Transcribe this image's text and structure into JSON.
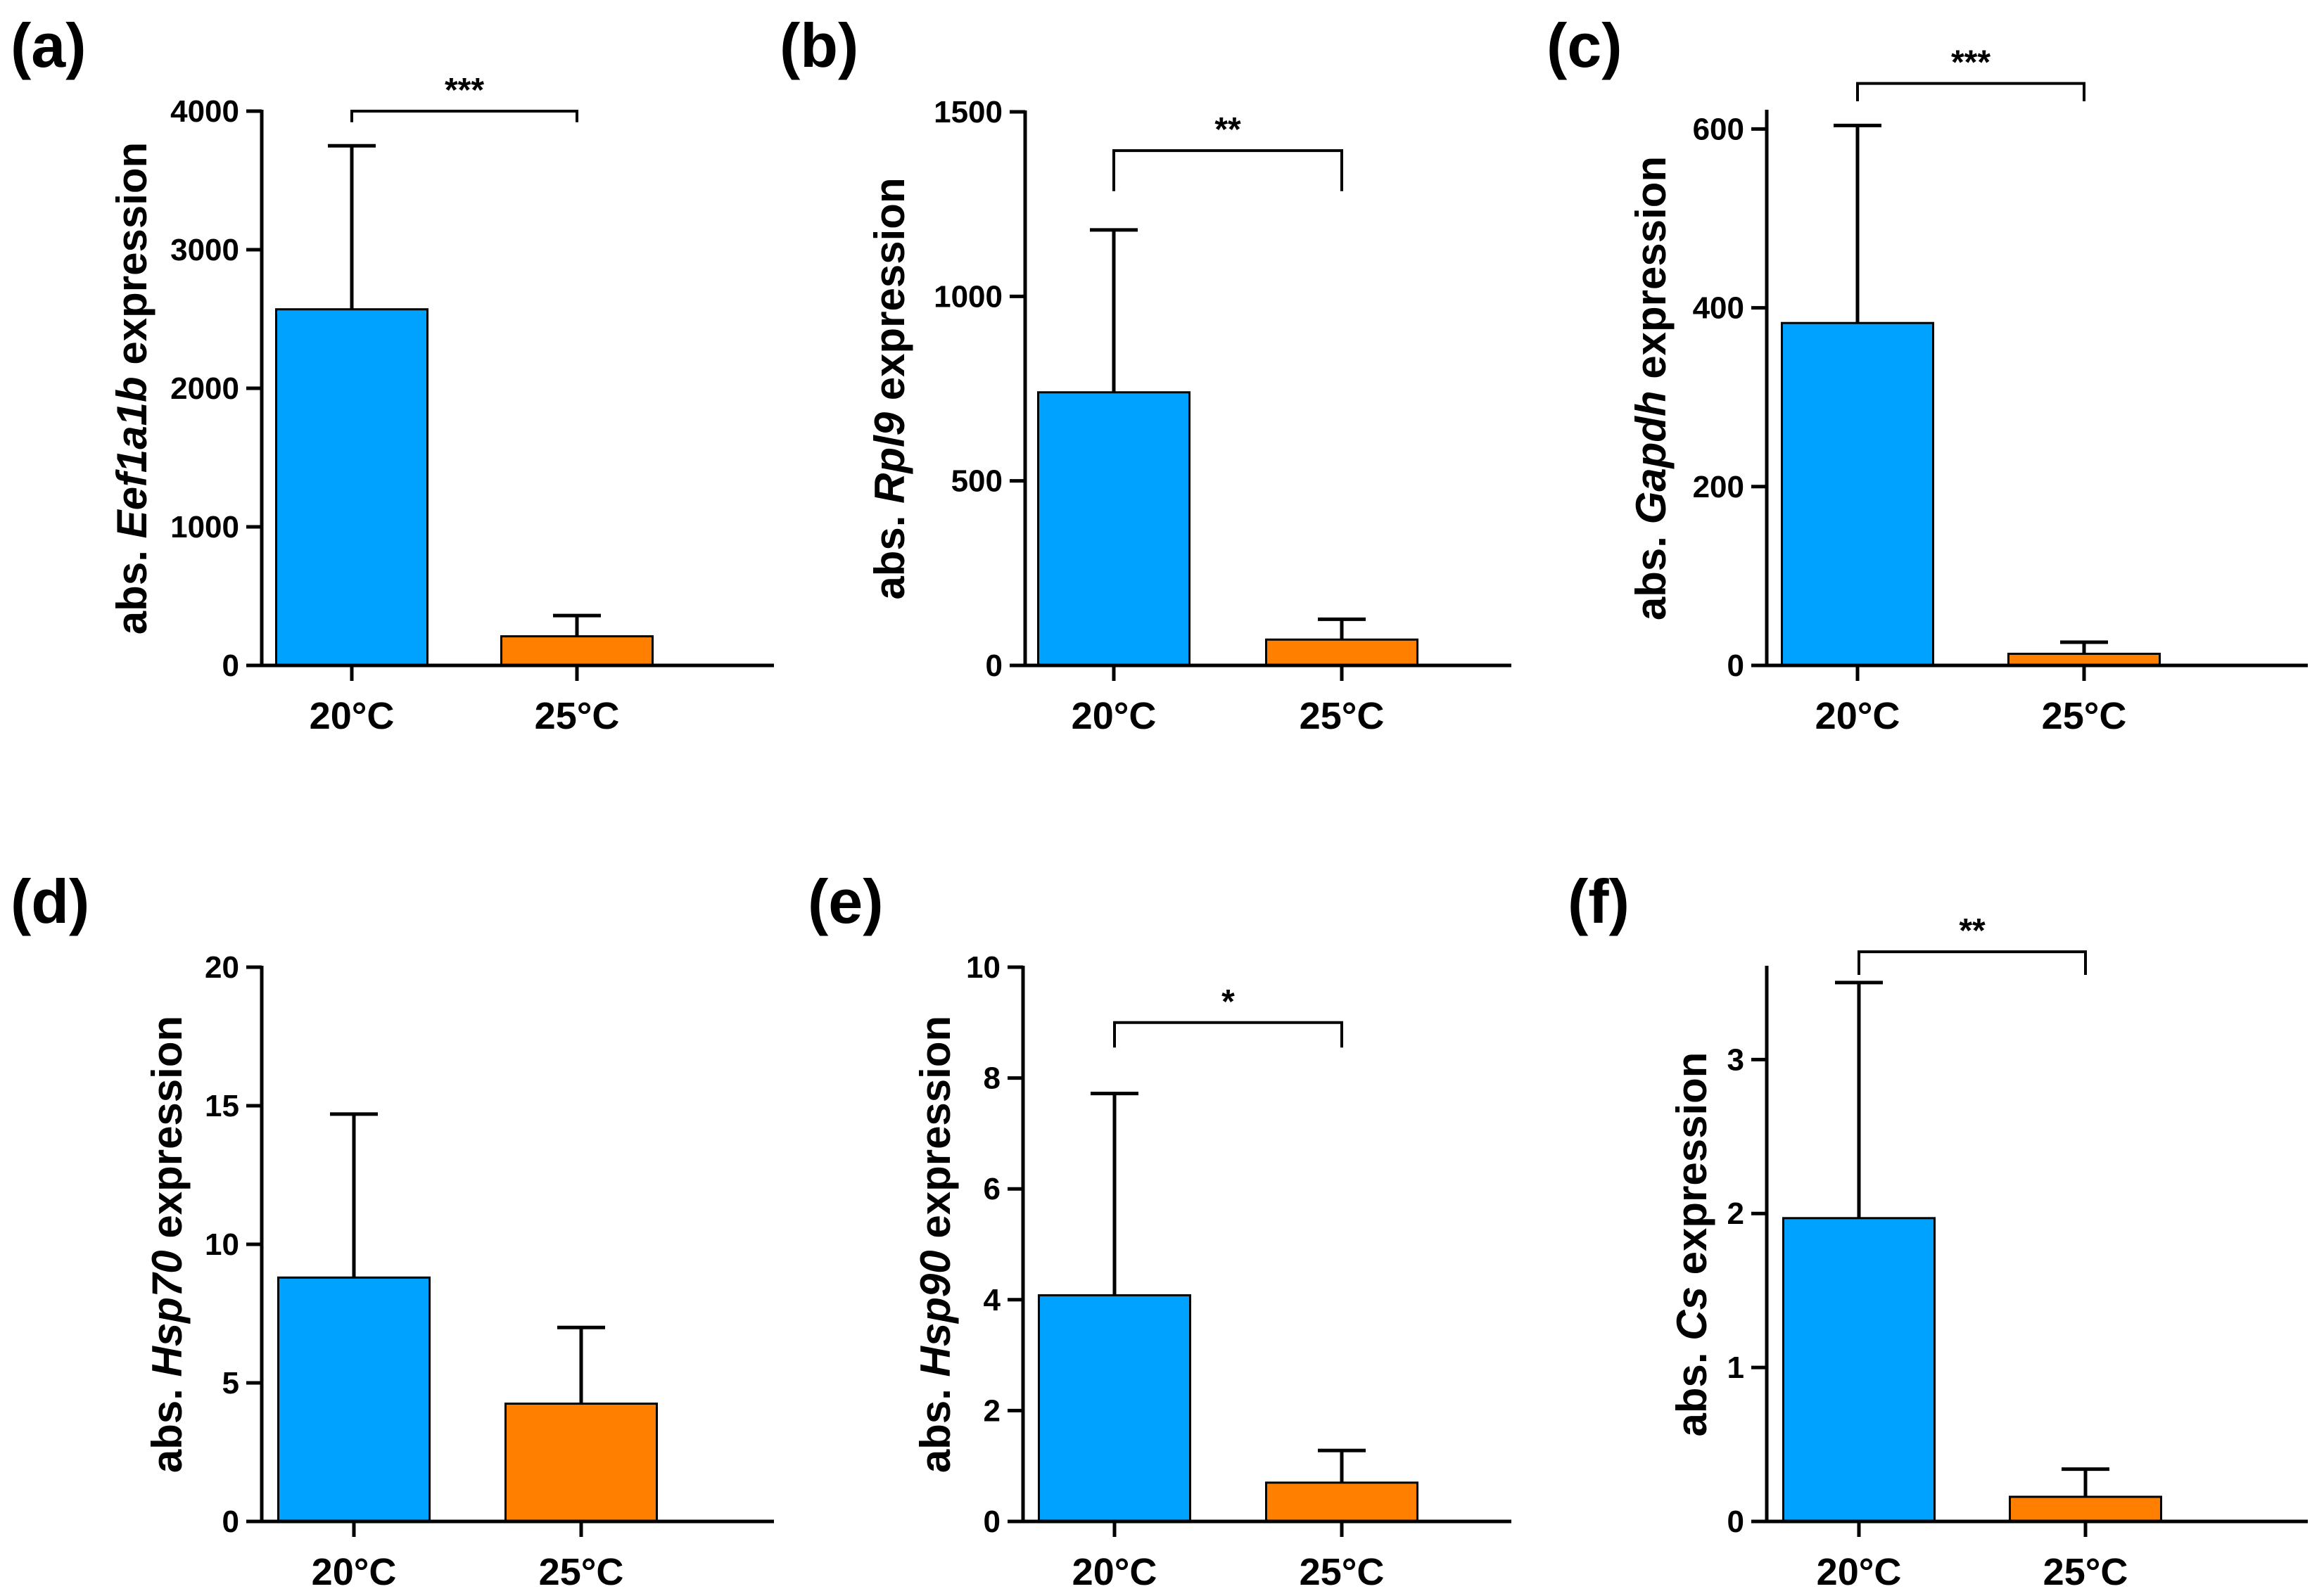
{
  "colors": {
    "bar_20": "#00a2ff",
    "bar_25": "#ff8000",
    "axis": "#000000"
  },
  "chart_data": [
    {
      "type": "bar",
      "panel": "(a)",
      "categories": [
        "20°C",
        "25°C"
      ],
      "values": [
        2570,
        210
      ],
      "errors": [
        1180,
        150
      ],
      "ylim": [
        0,
        4000
      ],
      "yticks": [
        0,
        1000,
        2000,
        3000,
        4000
      ],
      "ylabel_prefix": "abs. ",
      "ylabel_gene": "Eef1a1b",
      "ylabel_suffix": " expression",
      "significance": "***",
      "sig_value": 4000,
      "sig_left_value": 3920,
      "sig_right_value": 3920
    },
    {
      "type": "bar",
      "panel": "(b)",
      "categories": [
        "20°C",
        "25°C"
      ],
      "values": [
        740,
        70
      ],
      "errors": [
        440,
        55
      ],
      "ylim": [
        0,
        1500
      ],
      "yticks": [
        0,
        500,
        1000,
        1500
      ],
      "ylabel_prefix": "abs. ",
      "ylabel_gene": "Rpl9",
      "ylabel_suffix": "  expression",
      "significance": "**",
      "sig_value": 1395,
      "sig_left_value": 1285,
      "sig_right_value": 1285
    },
    {
      "type": "bar",
      "panel": "(c)",
      "categories": [
        "20°C",
        "25°C"
      ],
      "values": [
        383,
        13
      ],
      "errors": [
        221,
        13
      ],
      "ylim": [
        0,
        620
      ],
      "yticks": [
        0,
        200,
        400,
        600
      ],
      "ylabel_prefix": "abs. ",
      "ylabel_gene": "Gapdh",
      "ylabel_suffix": " expression",
      "significance": "***",
      "sig_value": 651,
      "sig_left_value": 631,
      "sig_right_value": 631
    },
    {
      "type": "bar",
      "panel": "(d)",
      "categories": [
        "20°C",
        "25°C"
      ],
      "values": [
        8.8,
        4.25
      ],
      "errors": [
        5.9,
        2.75
      ],
      "ylim": [
        0,
        20
      ],
      "yticks": [
        0,
        5,
        10,
        15,
        20
      ],
      "ylabel_prefix": "abs. ",
      "ylabel_gene": "Hsp70",
      "ylabel_suffix": " expression",
      "significance": "",
      "sig_value": null,
      "sig_left_value": null,
      "sig_right_value": null
    },
    {
      "type": "bar",
      "panel": "(e)",
      "categories": [
        "20°C",
        "25°C"
      ],
      "values": [
        4.08,
        0.7
      ],
      "errors": [
        3.64,
        0.58
      ],
      "ylim": [
        0,
        10
      ],
      "yticks": [
        0,
        2,
        4,
        6,
        8,
        10
      ],
      "ylabel_prefix": "abs. ",
      "ylabel_gene": "Hsp90",
      "ylabel_suffix": " expression",
      "significance": "*",
      "sig_value": 9.0,
      "sig_left_value": 8.55,
      "sig_right_value": 8.55
    },
    {
      "type": "bar",
      "panel": "(f)",
      "categories": [
        "20°C",
        "25°C"
      ],
      "values": [
        1.97,
        0.16
      ],
      "errors": [
        1.53,
        0.18
      ],
      "ylim": [
        0,
        3.6
      ],
      "yticks": [
        0,
        1,
        2,
        3
      ],
      "ytick_labels": [
        "0",
        "1",
        "2",
        "3"
      ],
      "ylabel_prefix": "abs. ",
      "ylabel_gene": "Cs",
      "ylabel_suffix": " expression",
      "significance": "**",
      "sig_value": 3.7,
      "sig_left_value": 3.55,
      "sig_right_value": 3.55
    }
  ]
}
